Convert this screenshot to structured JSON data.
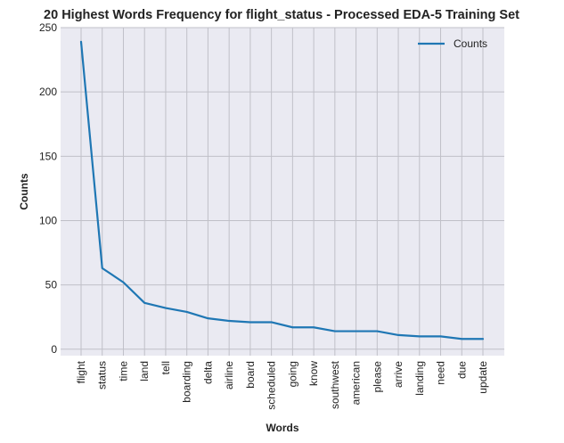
{
  "chart_data": {
    "type": "line",
    "title": "20 Highest Words Frequency for flight_status - Processed EDA-5 Training Set",
    "xlabel": "Words",
    "ylabel": "Counts",
    "categories": [
      "flight",
      "status",
      "time",
      "land",
      "tell",
      "boarding",
      "delta",
      "airline",
      "board",
      "scheduled",
      "going",
      "know",
      "southwest",
      "american",
      "please",
      "arrive",
      "landing",
      "need",
      "due",
      "update"
    ],
    "series": [
      {
        "name": "Counts",
        "values": [
          239,
          63,
          52,
          36,
          32,
          29,
          24,
          22,
          21,
          21,
          17,
          17,
          14,
          14,
          14,
          11,
          10,
          10,
          8,
          8
        ]
      }
    ],
    "ylim": [
      -5,
      250
    ],
    "yticks": [
      0,
      50,
      100,
      150,
      200,
      250
    ],
    "grid": true,
    "legend": "top-right",
    "colors": {
      "line": "#1f77b4",
      "plot_bg": "#eaeaf2",
      "grid": "#c0c0c8"
    }
  }
}
